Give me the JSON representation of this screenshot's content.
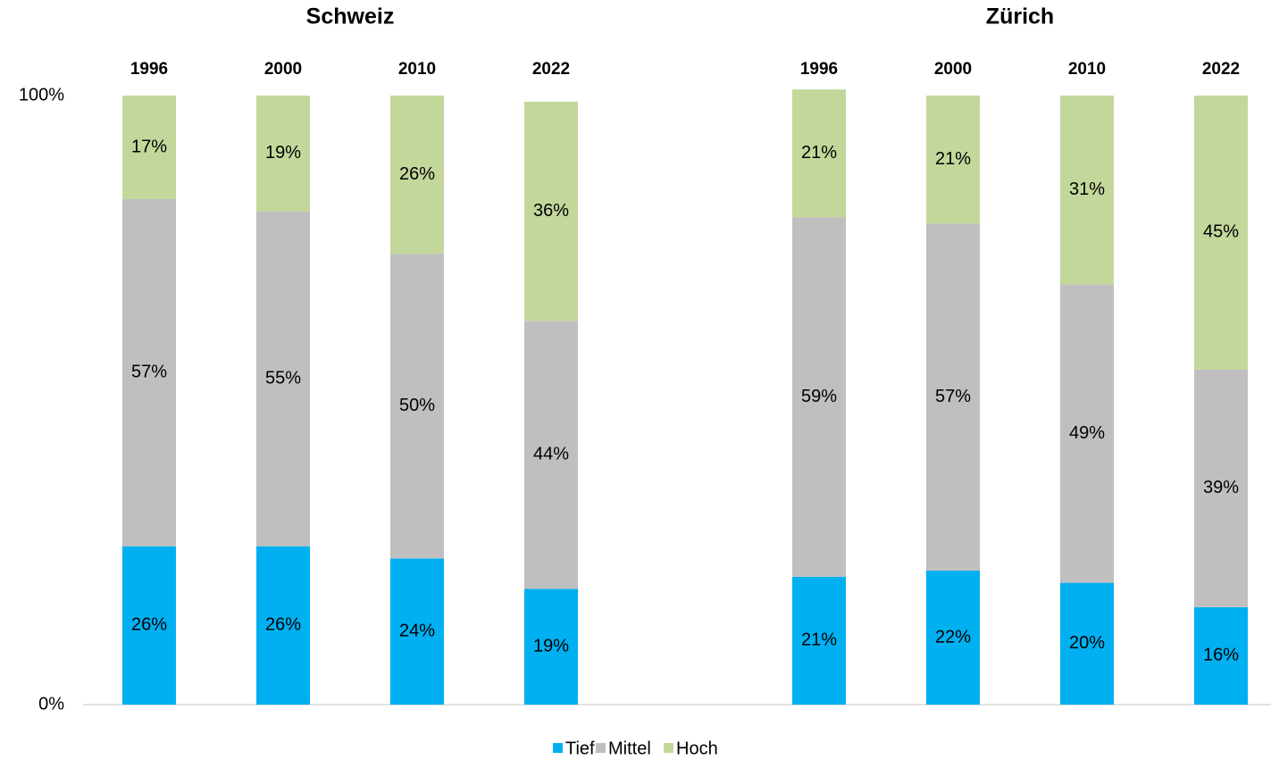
{
  "chart_data": {
    "type": "bar",
    "stacked": true,
    "series": [
      {
        "name": "Tief",
        "color": "#00b0f0"
      },
      {
        "name": "Mittel",
        "color": "#bfbfbf"
      },
      {
        "name": "Hoch",
        "color": "#c4d79b"
      }
    ],
    "groups": [
      {
        "title": "Schweiz",
        "categories": [
          "1996",
          "2000",
          "2010",
          "2022"
        ],
        "values": [
          [
            26,
            26,
            24,
            19
          ],
          [
            57,
            55,
            50,
            44
          ],
          [
            17,
            19,
            26,
            36
          ]
        ],
        "value_labels": [
          [
            "26%",
            "26%",
            "24%",
            "19%"
          ],
          [
            "57%",
            "55%",
            "50%",
            "44%"
          ],
          [
            "17%",
            "19%",
            "26%",
            "36%"
          ]
        ]
      },
      {
        "title": "Zürich",
        "categories": [
          "1996",
          "2000",
          "2010",
          "2022"
        ],
        "values": [
          [
            21,
            22,
            20,
            16
          ],
          [
            59,
            57,
            49,
            39
          ],
          [
            21,
            21,
            31,
            45
          ]
        ],
        "value_labels": [
          [
            "21%",
            "22%",
            "20%",
            "16%"
          ],
          [
            "59%",
            "57%",
            "49%",
            "39%"
          ],
          [
            "21%",
            "21%",
            "31%",
            "45%"
          ]
        ]
      }
    ],
    "ylim": [
      0,
      100
    ],
    "yticks": [
      {
        "value": 0,
        "label": "0%"
      },
      {
        "value": 100,
        "label": "100%"
      }
    ],
    "legend": "bottom"
  }
}
